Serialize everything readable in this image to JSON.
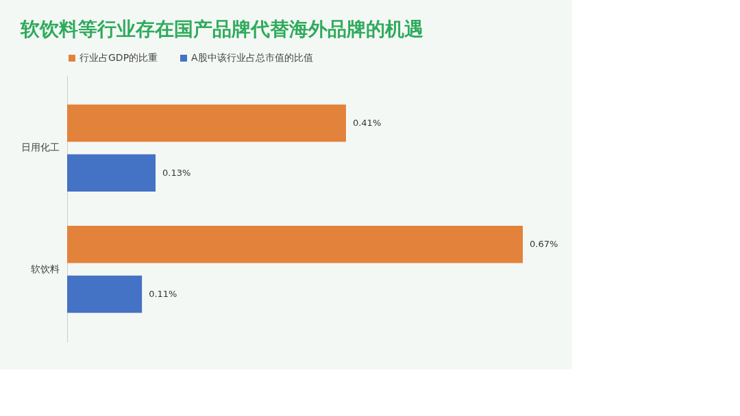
{
  "chart_data": {
    "type": "bar",
    "orientation": "horizontal",
    "title": "软饮料等行业存在国产品牌代替海外品牌的机遇",
    "categories": [
      "日用化工",
      "软饮料"
    ],
    "series": [
      {
        "name": "行业占GDP的比重",
        "color": "#e3823a",
        "values": [
          0.41,
          0.67
        ],
        "value_labels": [
          "0.41%",
          "0.67%"
        ]
      },
      {
        "name": "A股中该行业占总市值的比值",
        "color": "#4472c4",
        "values": [
          0.13,
          0.11
        ],
        "value_labels": [
          "0.13%",
          "0.11%"
        ]
      }
    ],
    "legend": "top",
    "grid": false
  }
}
